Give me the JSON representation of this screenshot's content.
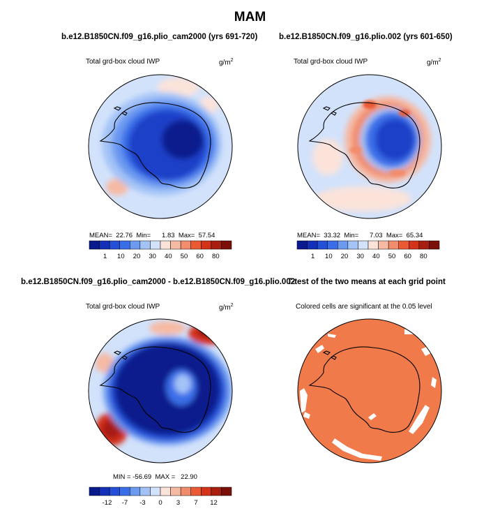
{
  "title": "MAM",
  "panels": [
    {
      "title": "b.e12.B1850CN.f09_g16.plio_cam2000 (yrs 691-720)",
      "field": "Total grd-box cloud IWP",
      "units": "g/m",
      "units_sup": "2",
      "stats": {
        "mean_label": "MEAN=",
        "mean": "22.76",
        "min_label": "Min=",
        "min": "1.83",
        "max_label": "Max=",
        "max": "57.54"
      }
    },
    {
      "title": "b.e12.B1850CN.f09_g16.plio.002 (yrs 601-650)",
      "field": "Total grd-box cloud IWP",
      "units": "g/m",
      "units_sup": "2",
      "stats": {
        "mean_label": "MEAN=",
        "mean": "33.32",
        "min_label": "Min=",
        "min": "7.03",
        "max_label": "Max=",
        "max": "65.34"
      }
    },
    {
      "title": "b.e12.B1850CN.f09_g16.plio_cam2000 - b.e12.B1850CN.f09_g16.plio.002",
      "field": "Total grd-box cloud IWP",
      "units": "g/m",
      "units_sup": "2",
      "stats": {
        "min_label": "MIN =",
        "min": "-56.69",
        "max_label": "MAX =",
        "max": "22.90"
      }
    },
    {
      "title": "T-test of the two means at each grid point",
      "field": "Colored cells are significant at the 0.05 level"
    }
  ],
  "colorbar_abs": {
    "labels": [
      "1",
      "10",
      "20",
      "30",
      "40",
      "50",
      "60",
      "80"
    ],
    "colors": [
      "#0a1a8c",
      "#1530b8",
      "#2450d8",
      "#3a6ee8",
      "#6c9af0",
      "#a3c3f7",
      "#d2e2fb",
      "#fbe3da",
      "#f6baa4",
      "#f18c6c",
      "#ea5a34",
      "#d4331a",
      "#a81f12",
      "#7a1009"
    ]
  },
  "colorbar_diff": {
    "labels": [
      "-12",
      "-7",
      "-3",
      "0",
      "3",
      "7",
      "12"
    ],
    "colors": [
      "#0a1a8c",
      "#1530b8",
      "#2450d8",
      "#3a6ee8",
      "#6c9af0",
      "#a3c3f7",
      "#d2e2fb",
      "#fbe3da",
      "#f6baa4",
      "#f18c6c",
      "#ea5a34",
      "#d4331a",
      "#a81f12",
      "#7a1009"
    ]
  },
  "map_colors": {
    "c1": "#0a1a8c",
    "c2": "#1d3fc8",
    "c3": "#3a6ee8",
    "c4": "#6c9af0",
    "c5": "#a3c3f7",
    "c6": "#d2e2fb",
    "c7": "#fbe3da",
    "c8": "#f6baa4",
    "c9": "#f18c6c",
    "c10": "#ea5a34",
    "c11": "#d4331a",
    "c12": "#a81f12",
    "sig": "#f07a4a",
    "white": "#ffffff"
  }
}
